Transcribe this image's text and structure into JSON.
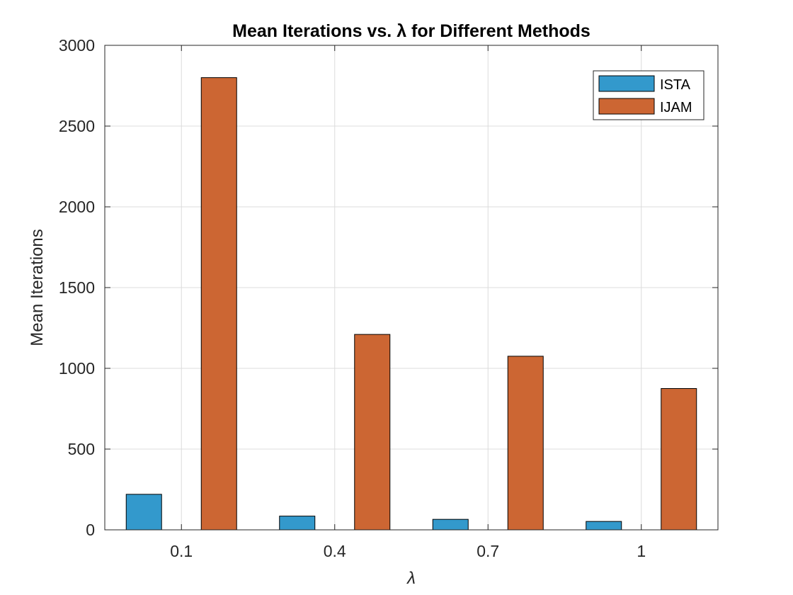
{
  "chart_data": {
    "type": "bar",
    "title": "Mean Iterations vs. λ for Different Methods",
    "xlabel": "λ",
    "ylabel": "Mean Iterations",
    "categories": [
      "0.1",
      "0.4",
      "0.7",
      "1"
    ],
    "series": [
      {
        "name": "ISTA",
        "color": "#3399cc",
        "values": [
          220,
          85,
          65,
          52
        ]
      },
      {
        "name": "IJAM",
        "color": "#cc6633",
        "values": [
          2800,
          1210,
          1075,
          875
        ]
      }
    ],
    "ylim": [
      0,
      3000
    ],
    "yticks": [
      "0",
      "500",
      "1000",
      "1500",
      "2000",
      "2500",
      "3000"
    ],
    "grid": true,
    "legend_position": "top-right"
  }
}
